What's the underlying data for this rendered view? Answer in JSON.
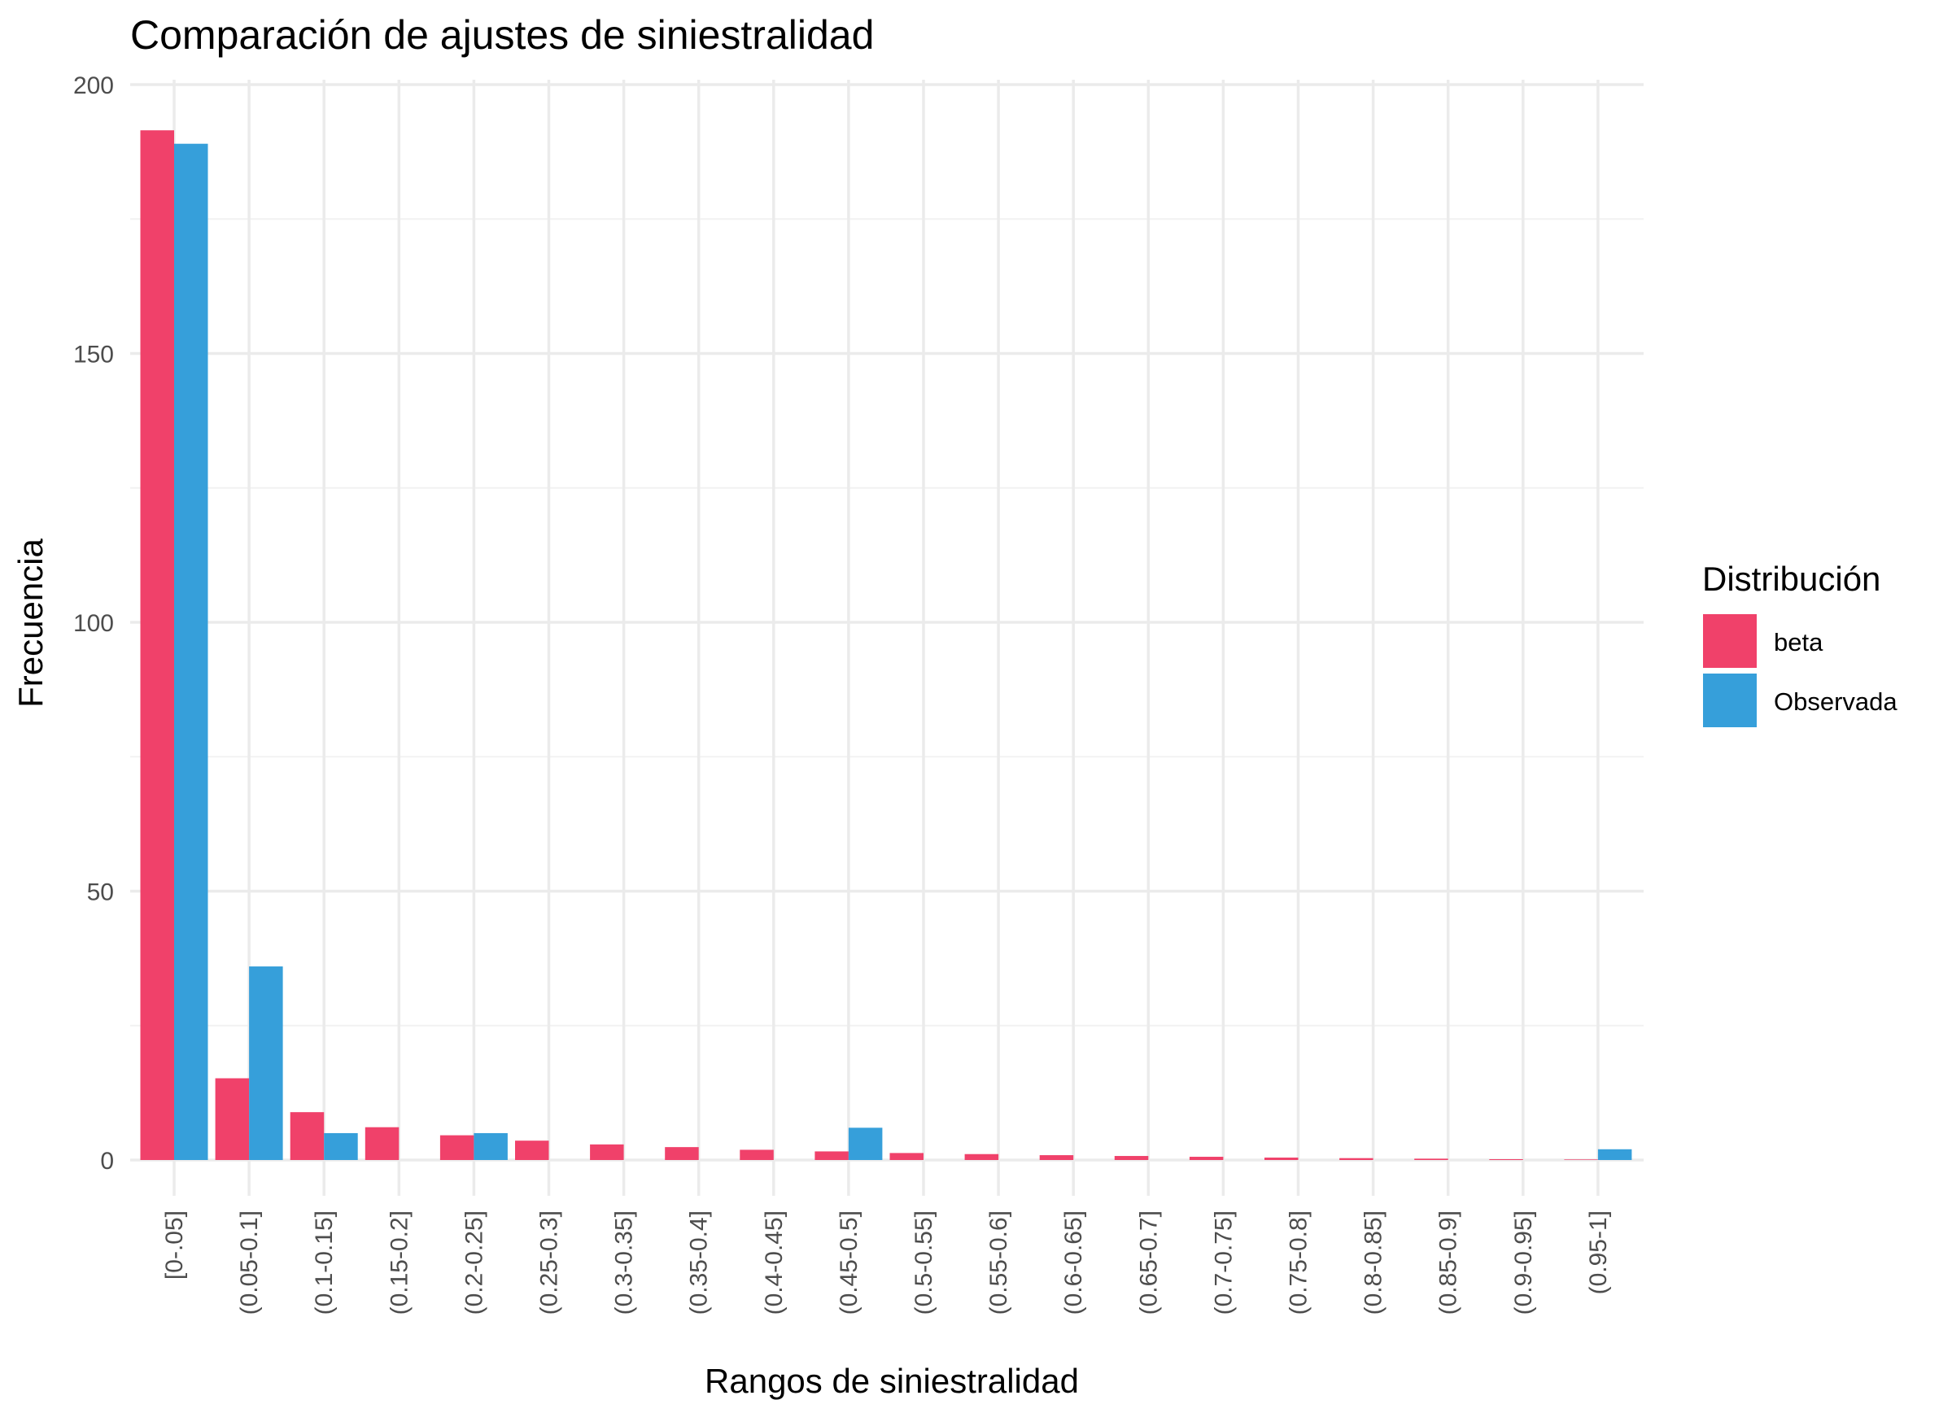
{
  "chart_data": {
    "type": "bar",
    "title": "Comparación de ajustes de siniestralidad",
    "xlabel": "Rangos de siniestralidad",
    "ylabel": "Frecuencia",
    "ylim": [
      0,
      200
    ],
    "yticks": [
      "0",
      "50",
      "100",
      "150",
      "200"
    ],
    "categories": [
      "[0-.05]",
      "(0.05-0.1]",
      "(0.1-0.15]",
      "(0.15-0.2]",
      "(0.2-0.25]",
      "(0.25-0.3]",
      "(0.3-0.35]",
      "(0.35-0.4]",
      "(0.4-0.45]",
      "(0.45-0.5]",
      "(0.5-0.55]",
      "(0.55-0.6]",
      "(0.6-0.65]",
      "(0.65-0.7]",
      "(0.7-0.75]",
      "(0.75-0.8]",
      "(0.8-0.85]",
      "(0.85-0.9]",
      "(0.9-0.95]",
      "(0.95-1]"
    ],
    "series": [
      {
        "name": "beta",
        "color": "#F0416A",
        "values": [
          191.5,
          15.2,
          8.9,
          6.1,
          4.6,
          3.6,
          2.9,
          2.4,
          1.9,
          1.6,
          1.3,
          1.1,
          0.9,
          0.75,
          0.6,
          0.45,
          0.35,
          0.25,
          0.15,
          0.1
        ]
      },
      {
        "name": "Observada",
        "color": "#369FDA",
        "values": [
          189,
          36,
          5,
          0,
          5,
          0,
          0,
          0,
          0,
          6,
          0,
          0,
          0,
          0,
          0,
          0,
          0,
          0,
          0,
          2
        ]
      }
    ],
    "legend": {
      "title": "Distribución",
      "position": "right"
    },
    "grid": true
  }
}
